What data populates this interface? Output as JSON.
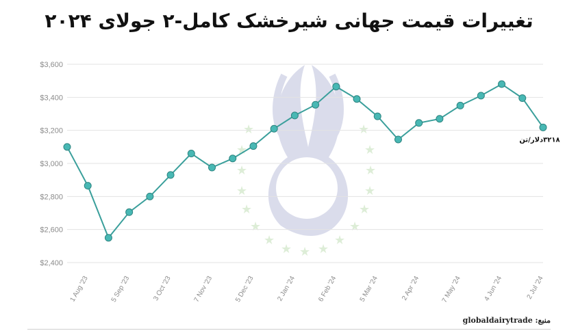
{
  "title": "تغییرات قیمت جهانی شیرخشک کامل-۲ جولای ۲۰۲۴",
  "source": "منبع: globaldairytrade",
  "colors": {
    "line": "#3a9f9b",
    "marker": "#48b8b4",
    "marker_stroke": "#2d8480",
    "grid": "#e3e3e3"
  },
  "chart_data": {
    "type": "line",
    "title": "تغییرات قیمت جهانی شیرخشک کامل-۲ جولای ۲۰۲۴",
    "xlabel": "",
    "ylabel": "",
    "ylim": [
      2400,
      3600
    ],
    "yticks": [
      "$2,400",
      "$2,600",
      "$2,800",
      "$3,000",
      "$3,200",
      "$3,400",
      "$3,600"
    ],
    "ytick_values": [
      2400,
      2600,
      2800,
      3000,
      3200,
      3400,
      3600
    ],
    "xtick_labels": [
      "1 Aug '23",
      "5 Sep '23",
      "3 Oct '23",
      "7 Nov '23",
      "5 Dec '23",
      "2 Jan '24",
      "6 Feb '24",
      "5 Mar '24",
      "2 Apr '24",
      "7 May '24",
      "4 Jun '24",
      "2 Jul '24"
    ],
    "xtick_indices": [
      1,
      3,
      5,
      7,
      9,
      11,
      13,
      15,
      17,
      19,
      21,
      23
    ],
    "values": [
      3100,
      2865,
      2550,
      2705,
      2800,
      2930,
      3060,
      2975,
      3030,
      3105,
      3210,
      3290,
      3355,
      3465,
      3390,
      3285,
      3145,
      3245,
      3270,
      3350,
      3410,
      3480,
      3395,
      3218
    ],
    "last_label": "۳۲۱۸دلار/تن",
    "grid": true
  }
}
